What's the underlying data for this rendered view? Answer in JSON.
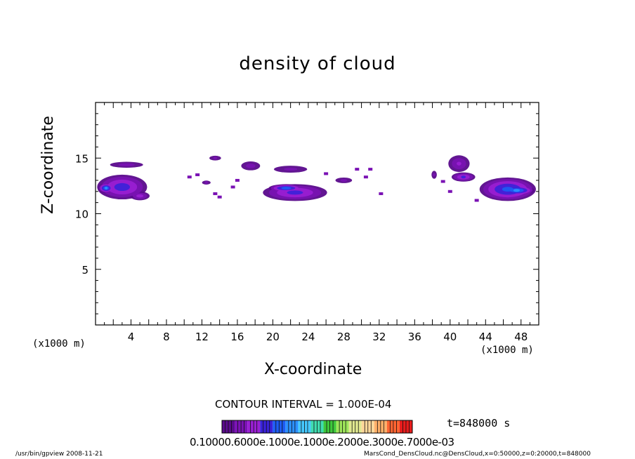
{
  "chart_data": {
    "type": "heatmap",
    "title": "density of cloud",
    "xlabel": "X-coordinate",
    "ylabel": "Z-coordinate",
    "xunit_left": "(x1000 m)",
    "xunit_right": "(x1000 m)",
    "xlim": [
      0,
      50
    ],
    "ylim": [
      0,
      20
    ],
    "xticks": [
      4,
      8,
      12,
      16,
      20,
      24,
      28,
      32,
      36,
      40,
      44,
      48
    ],
    "yticks": [
      5,
      10,
      15
    ],
    "contour_interval": "CONTOUR INTERVAL = 1.000E-04",
    "time_label": "t=848000 s",
    "colorbar_labels": "0.10000.6000e.1000e.1000e.2000e.3000e.7000e-03",
    "palette": [
      "#5a0a8c",
      "#7a12b4",
      "#9a1fd4",
      "#3a22d8",
      "#1e5cf4",
      "#2c90ff",
      "#46c8ff",
      "#40dcb0",
      "#3ec83c",
      "#9ee65a",
      "#e0e890",
      "#ffd79a",
      "#ffb06a",
      "#ff6432",
      "#e81c1c"
    ],
    "blobs": [
      {
        "x": 3.0,
        "z": 12.4,
        "rx": 3.3,
        "rz": 1.3,
        "v": 0.35
      },
      {
        "x": 5.0,
        "z": 11.6,
        "rx": 1.4,
        "rz": 0.5,
        "v": 0.22
      },
      {
        "x": 1.2,
        "z": 12.3,
        "rx": 1.0,
        "rz": 0.5,
        "v": 0.55
      },
      {
        "x": 3.5,
        "z": 14.4,
        "rx": 2.8,
        "rz": 0.4,
        "v": 0.12
      },
      {
        "x": 22.5,
        "z": 11.9,
        "rx": 4.3,
        "rz": 0.9,
        "v": 0.32
      },
      {
        "x": 21.5,
        "z": 12.3,
        "rx": 2.2,
        "rz": 0.4,
        "v": 0.5
      },
      {
        "x": 17.5,
        "z": 14.3,
        "rx": 1.6,
        "rz": 0.6,
        "v": 0.12
      },
      {
        "x": 22.0,
        "z": 14.0,
        "rx": 3.0,
        "rz": 0.5,
        "v": 0.1
      },
      {
        "x": 28.0,
        "z": 13.0,
        "rx": 1.5,
        "rz": 0.4,
        "v": 0.1
      },
      {
        "x": 13.5,
        "z": 15.0,
        "rx": 1.1,
        "rz": 0.35,
        "v": 0.09
      },
      {
        "x": 12.5,
        "z": 12.8,
        "rx": 0.8,
        "rz": 0.3,
        "v": 0.09
      },
      {
        "x": 41.0,
        "z": 14.5,
        "rx": 1.6,
        "rz": 1.0,
        "v": 0.18
      },
      {
        "x": 41.5,
        "z": 13.3,
        "rx": 1.6,
        "rz": 0.5,
        "v": 0.3
      },
      {
        "x": 46.5,
        "z": 12.2,
        "rx": 3.6,
        "rz": 1.2,
        "v": 0.45
      },
      {
        "x": 47.5,
        "z": 12.1,
        "rx": 2.2,
        "rz": 0.5,
        "v": 0.6
      },
      {
        "x": 38.2,
        "z": 13.5,
        "rx": 0.5,
        "rz": 0.6,
        "v": 0.09
      }
    ],
    "specks": [
      {
        "x": 10.6,
        "z": 13.3
      },
      {
        "x": 11.5,
        "z": 13.5
      },
      {
        "x": 13.5,
        "z": 11.8
      },
      {
        "x": 14.0,
        "z": 11.5
      },
      {
        "x": 15.5,
        "z": 12.4
      },
      {
        "x": 29.5,
        "z": 14.0
      },
      {
        "x": 30.5,
        "z": 13.3
      },
      {
        "x": 32.2,
        "z": 11.8
      },
      {
        "x": 39.2,
        "z": 12.9
      },
      {
        "x": 40.0,
        "z": 12.0
      },
      {
        "x": 16.0,
        "z": 13.0
      },
      {
        "x": 26.0,
        "z": 13.6
      },
      {
        "x": 31.0,
        "z": 14.0
      },
      {
        "x": 43.0,
        "z": 11.2
      }
    ]
  },
  "footer": {
    "left": "/usr/bin/gpview   2008-11-21",
    "right": "MarsCond_DensCloud.nc@DensCloud,x=0:50000,z=0:20000,t=848000"
  }
}
